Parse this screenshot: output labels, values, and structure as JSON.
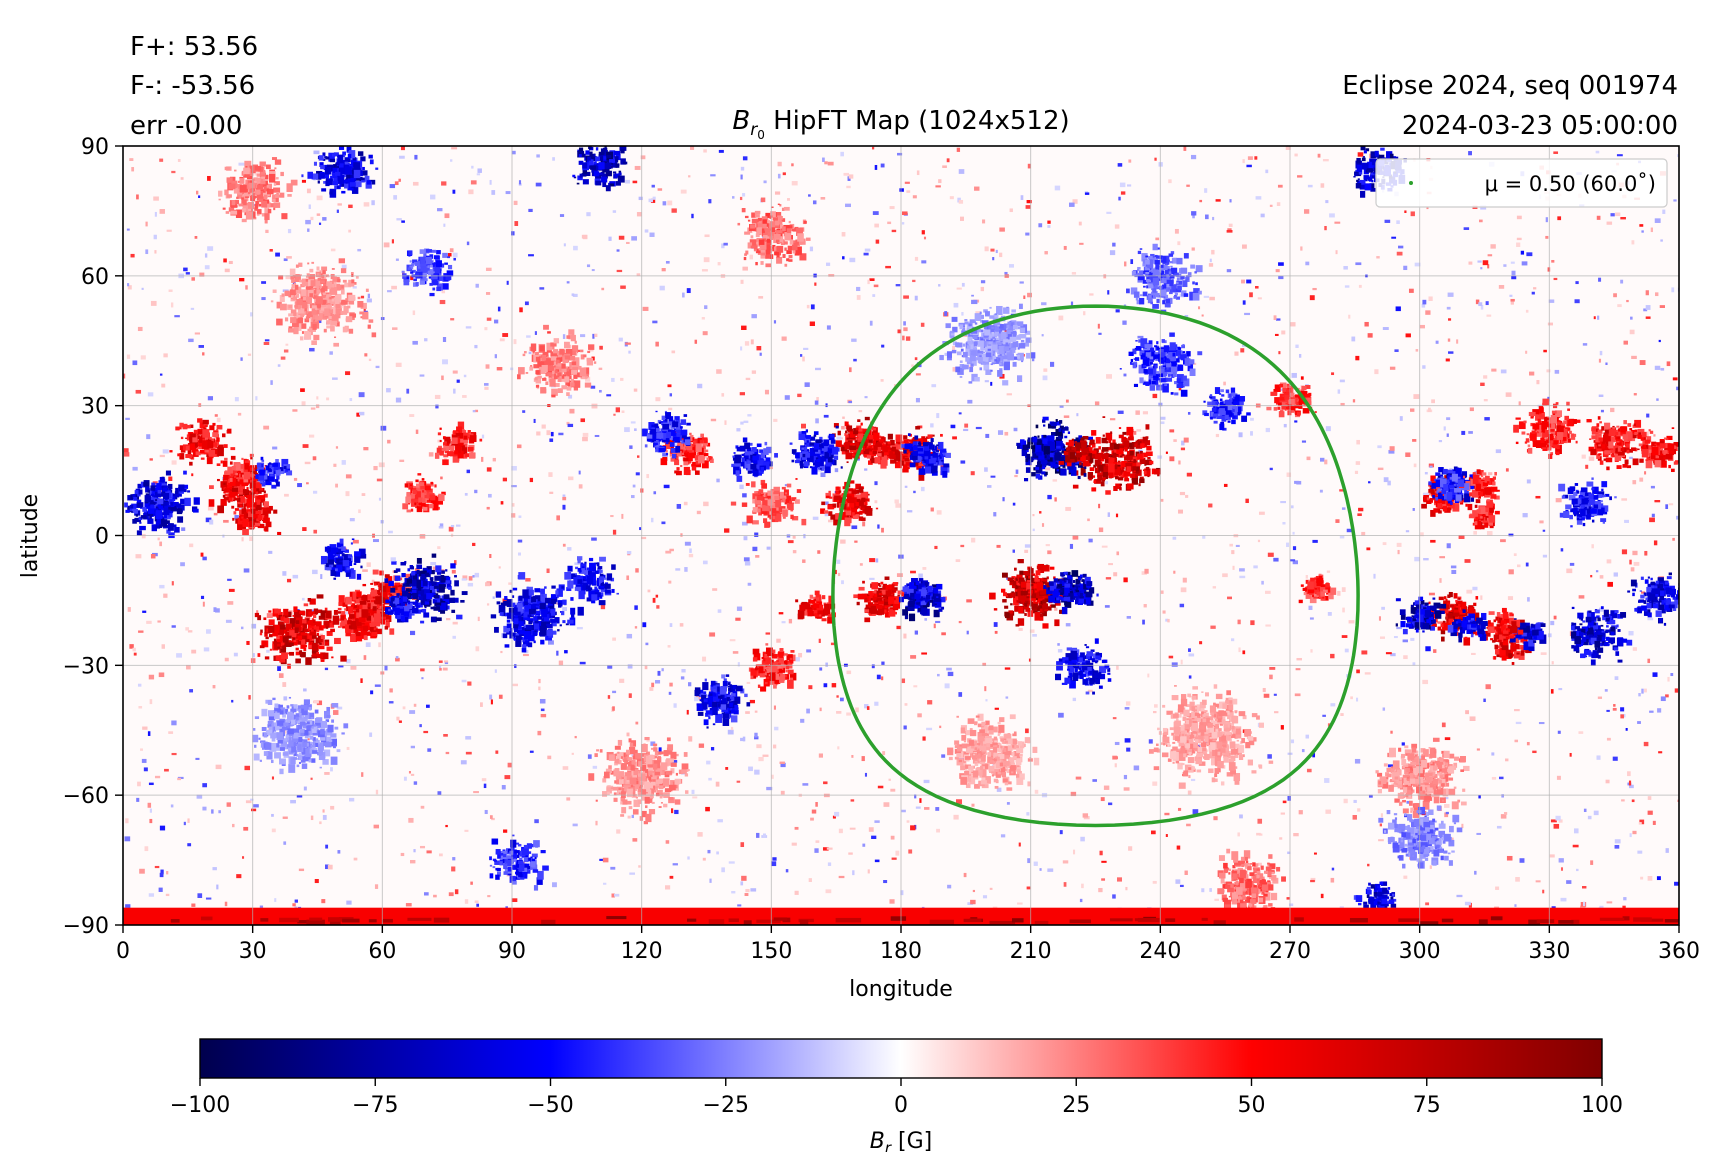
{
  "header": {
    "flux_pos": "F+: 53.56",
    "flux_neg": "F-: -53.56",
    "error": "err -0.00",
    "event": "Eclipse 2024, seq 001974",
    "timestamp": "2024-03-23 05:00:00"
  },
  "chart_data": {
    "type": "heatmap",
    "title": "B_r0 HipFT Map (1024x512)",
    "title_base": "B",
    "title_sub": "r",
    "title_subsub": "0",
    "title_rest": " HipFT Map (1024x512)",
    "xlabel": "longitude",
    "ylabel": "latitude",
    "xlim": [
      0,
      360
    ],
    "ylim": [
      -90,
      90
    ],
    "xticks": [
      0,
      30,
      60,
      90,
      120,
      150,
      180,
      210,
      240,
      270,
      300,
      330,
      360
    ],
    "yticks": [
      -90,
      -60,
      -30,
      0,
      30,
      60,
      90
    ],
    "ytick_labels": [
      "−90",
      "−60",
      "−30",
      "0",
      "30",
      "60",
      "90"
    ],
    "grid": true,
    "legend": {
      "placement": "top-right",
      "label": "μ = 0.50 (60.0˚)",
      "color": "#2ca02c"
    },
    "mu_contour": {
      "mu": 0.5,
      "angle_deg": 60.0,
      "center_lon": 225,
      "center_lat": -7,
      "color": "#2ca02c"
    },
    "colorbar": {
      "label": "B_r [G]",
      "label_base": "B",
      "label_sub": "r",
      "label_unit": " [G]",
      "range": [
        -100,
        100
      ],
      "ticks": [
        -100,
        -75,
        -50,
        -25,
        0,
        25,
        50,
        75,
        100
      ],
      "tick_labels": [
        "−100",
        "−75",
        "−50",
        "−25",
        "0",
        "25",
        "50",
        "75",
        "100"
      ],
      "colormap": "seismic",
      "colors": [
        "#00004d",
        "#0000ff",
        "#ffffff",
        "#ff0000",
        "#800000"
      ]
    },
    "active_regions": [
      {
        "lon": 217,
        "lat": 20,
        "positive": "east",
        "strength": 100
      },
      {
        "lon": 213,
        "lat": -12,
        "positive": "west",
        "strength": 90
      },
      {
        "lon": 180,
        "lat": -13,
        "positive": "west",
        "strength": 80
      },
      {
        "lon": 180,
        "lat": 20,
        "positive": "west",
        "strength": 75
      },
      {
        "lon": 315,
        "lat": -20,
        "positive": "east",
        "strength": 75
      },
      {
        "lon": 310,
        "lat": 12,
        "positive": "east",
        "strength": 60
      },
      {
        "lon": 60,
        "lat": -16,
        "positive": "west",
        "strength": 75
      },
      {
        "lon": 30,
        "lat": 15,
        "positive": "west",
        "strength": 65
      }
    ],
    "blobs_positive": [
      {
        "lon": 210,
        "lat": -13,
        "r": 8,
        "v": 100
      },
      {
        "lon": 230,
        "lat": 18,
        "r": 9,
        "v": 95
      },
      {
        "lon": 170,
        "lat": 22,
        "r": 6,
        "v": 85
      },
      {
        "lon": 183,
        "lat": 20,
        "r": 6,
        "v": 80
      },
      {
        "lon": 168,
        "lat": 8,
        "r": 6,
        "v": 75
      },
      {
        "lon": 174,
        "lat": -15,
        "r": 5,
        "v": 80
      },
      {
        "lon": 160,
        "lat": -16,
        "r": 4,
        "v": 70
      },
      {
        "lon": 308,
        "lat": -18,
        "r": 6,
        "v": 85
      },
      {
        "lon": 320,
        "lat": -24,
        "r": 5,
        "v": 80
      },
      {
        "lon": 305,
        "lat": 10,
        "r": 5,
        "v": 75
      },
      {
        "lon": 314,
        "lat": 5,
        "r": 4,
        "v": 70
      },
      {
        "lon": 345,
        "lat": 22,
        "r": 7,
        "v": 70
      },
      {
        "lon": 330,
        "lat": 25,
        "r": 7,
        "v": 60
      },
      {
        "lon": 355,
        "lat": 20,
        "r": 5,
        "v": 65
      },
      {
        "lon": 27,
        "lat": 12,
        "r": 7,
        "v": 80
      },
      {
        "lon": 18,
        "lat": 22,
        "r": 6,
        "v": 70
      },
      {
        "lon": 30,
        "lat": 5,
        "r": 5,
        "v": 75
      },
      {
        "lon": 40,
        "lat": -22,
        "r": 9,
        "v": 85
      },
      {
        "lon": 55,
        "lat": -18,
        "r": 7,
        "v": 75
      },
      {
        "lon": 62,
        "lat": -12,
        "r": 5,
        "v": 70
      },
      {
        "lon": 77,
        "lat": 22,
        "r": 5,
        "v": 65
      },
      {
        "lon": 68,
        "lat": 10,
        "r": 5,
        "v": 55
      },
      {
        "lon": 130,
        "lat": 20,
        "r": 6,
        "v": 60
      },
      {
        "lon": 150,
        "lat": -30,
        "r": 6,
        "v": 60
      },
      {
        "lon": 270,
        "lat": 32,
        "r": 5,
        "v": 55
      },
      {
        "lon": 276,
        "lat": -12,
        "r": 4,
        "v": 55
      },
      {
        "lon": 150,
        "lat": 8,
        "r": 6,
        "v": 45
      },
      {
        "lon": 100,
        "lat": 40,
        "r": 8,
        "v": 35
      },
      {
        "lon": 250,
        "lat": -45,
        "r": 12,
        "v": 25
      },
      {
        "lon": 200,
        "lat": -50,
        "r": 10,
        "v": 25
      },
      {
        "lon": 120,
        "lat": -55,
        "r": 10,
        "v": 30
      },
      {
        "lon": 300,
        "lat": -55,
        "r": 10,
        "v": 30
      },
      {
        "lon": 45,
        "lat": 55,
        "r": 10,
        "v": 30
      },
      {
        "lon": 150,
        "lat": 70,
        "r": 8,
        "v": 40
      },
      {
        "lon": 30,
        "lat": 80,
        "r": 8,
        "v": 35
      },
      {
        "lon": 260,
        "lat": -80,
        "r": 8,
        "v": 40
      }
    ],
    "blobs_negative": [
      {
        "lon": 215,
        "lat": 20,
        "r": 8,
        "v": -100
      },
      {
        "lon": 220,
        "lat": -12,
        "r": 5,
        "v": -95
      },
      {
        "lon": 185,
        "lat": -14,
        "r": 5,
        "v": -90
      },
      {
        "lon": 187,
        "lat": 18,
        "r": 4,
        "v": -70
      },
      {
        "lon": 160,
        "lat": 20,
        "r": 6,
        "v": -75
      },
      {
        "lon": 145,
        "lat": 18,
        "r": 5,
        "v": -70
      },
      {
        "lon": 125,
        "lat": 24,
        "r": 6,
        "v": -65
      },
      {
        "lon": 138,
        "lat": -38,
        "r": 6,
        "v": -75
      },
      {
        "lon": 95,
        "lat": -18,
        "r": 9,
        "v": -75
      },
      {
        "lon": 108,
        "lat": -10,
        "r": 6,
        "v": -70
      },
      {
        "lon": 70,
        "lat": -12,
        "r": 8,
        "v": -90
      },
      {
        "lon": 50,
        "lat": -5,
        "r": 5,
        "v": -75
      },
      {
        "lon": 8,
        "lat": 8,
        "r": 8,
        "v": -80
      },
      {
        "lon": 340,
        "lat": -22,
        "r": 7,
        "v": -85
      },
      {
        "lon": 355,
        "lat": -14,
        "r": 6,
        "v": -80
      },
      {
        "lon": 300,
        "lat": -18,
        "r": 5,
        "v": -90
      },
      {
        "lon": 325,
        "lat": -22,
        "r": 4,
        "v": -80
      },
      {
        "lon": 308,
        "lat": 12,
        "r": 5,
        "v": -80
      },
      {
        "lon": 338,
        "lat": 8,
        "r": 6,
        "v": -65
      },
      {
        "lon": 222,
        "lat": -30,
        "r": 6,
        "v": -70
      },
      {
        "lon": 240,
        "lat": 40,
        "r": 8,
        "v": -55
      },
      {
        "lon": 255,
        "lat": 30,
        "r": 5,
        "v": -60
      },
      {
        "lon": 50,
        "lat": 85,
        "r": 7,
        "v": -80
      },
      {
        "lon": 110,
        "lat": 86,
        "r": 6,
        "v": -90
      },
      {
        "lon": 290,
        "lat": 85,
        "r": 6,
        "v": -90
      },
      {
        "lon": 70,
        "lat": 62,
        "r": 6,
        "v": -50
      },
      {
        "lon": 240,
        "lat": 60,
        "r": 8,
        "v": -45
      },
      {
        "lon": 300,
        "lat": -70,
        "r": 8,
        "v": -35
      },
      {
        "lon": 40,
        "lat": -45,
        "r": 10,
        "v": -30
      },
      {
        "lon": 90,
        "lat": -75,
        "r": 6,
        "v": -60
      },
      {
        "lon": 290,
        "lat": -83,
        "r": 4,
        "v": -80
      },
      {
        "lon": 200,
        "lat": 45,
        "r": 10,
        "v": -30
      }
    ],
    "south_pole_band": {
      "lat_top": -86,
      "lat_bottom": -90,
      "value": 95
    }
  }
}
